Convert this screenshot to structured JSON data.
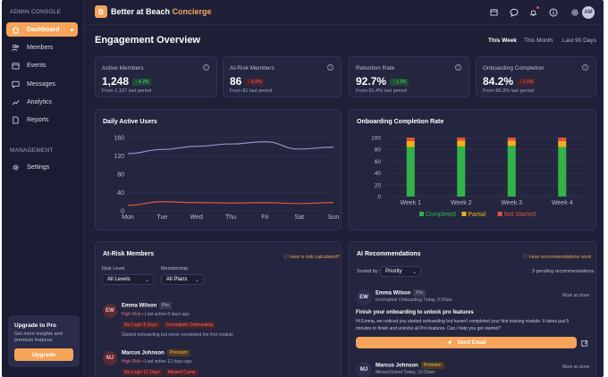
{
  "sidebar": {
    "title": "ADMIN CONSOLE",
    "items": [
      {
        "label": "Dashboard",
        "icon": "home-icon",
        "active": true
      },
      {
        "label": "Members",
        "icon": "users-icon"
      },
      {
        "label": "Events",
        "icon": "calendar-icon"
      },
      {
        "label": "Messages",
        "icon": "chat-icon"
      },
      {
        "label": "Analytics",
        "icon": "trend-icon"
      },
      {
        "label": "Reports",
        "icon": "document-icon"
      }
    ],
    "section_management": "MANAGEMENT",
    "settings_label": "Settings",
    "upgrade": {
      "title": "Upgrade to Pro",
      "text": "Get more insights and premium features",
      "button": "Upgrade"
    }
  },
  "header": {
    "logo_letter": "B",
    "brand": "Better at Beach",
    "brand_accent": "Concierge",
    "avatar_initials": "AM"
  },
  "main": {
    "title": "Engagement Overview",
    "ranges": [
      "This Week",
      "This Month",
      "Last 90 Days"
    ],
    "stats": [
      {
        "label": "Active Members",
        "value": "1,248",
        "delta": "↑ 4.2%",
        "trend": "up",
        "sub": "From 1,197 last period"
      },
      {
        "label": "At-Risk Members",
        "value": "86",
        "delta": "↑ 6.0%",
        "trend": "down",
        "sub": "From 81 last period"
      },
      {
        "label": "Retention Rate",
        "value": "92.7%",
        "delta": "↑ 1.3%",
        "trend": "up",
        "sub": "From 91.4% last period"
      },
      {
        "label": "Onboarding Completion",
        "value": "84.2%",
        "delta": "↓ 2.1%",
        "trend": "down",
        "sub": "From 86.3% last period"
      }
    ]
  },
  "chart_data": [
    {
      "type": "line",
      "title": "Daily Active Users",
      "categories": [
        "Mon",
        "Tue",
        "Wed",
        "Thu",
        "Fri",
        "Sat",
        "Sun"
      ],
      "ylim": [
        0,
        160
      ],
      "yticks": [
        "160",
        "120",
        "80",
        "40",
        "0"
      ],
      "series": [
        {
          "values": [
            125,
            134,
            141,
            146,
            151,
            135,
            139
          ],
          "color": "#8f92bf"
        },
        {
          "values": [
            12,
            20,
            18,
            17,
            18,
            16,
            18
          ],
          "color": "#e5533d"
        }
      ],
      "grid": true
    },
    {
      "type": "bar",
      "title": "Onboarding Completion Rate",
      "categories": [
        "Week 1",
        "Week 2",
        "Week 3",
        "Week 4"
      ],
      "ylim": [
        0,
        100
      ],
      "yticks": [
        "100",
        "80",
        "60",
        "40",
        "20",
        "0"
      ],
      "series": [
        {
          "name": "Completed",
          "values": [
            84,
            85,
            86,
            84
          ],
          "color": "#33b249"
        },
        {
          "name": "Partial",
          "values": [
            10,
            10,
            9,
            10
          ],
          "color": "#f2b01e"
        },
        {
          "name": "Not Started",
          "values": [
            6,
            5,
            5,
            6
          ],
          "color": "#e5533d"
        }
      ],
      "legend": "bottom",
      "grid": true
    }
  ],
  "at_risk": {
    "title": "At-Risk Members",
    "note": "How is risk calculated?",
    "filter_risk_label": "Risk Level",
    "filter_risk_value": "All Levels",
    "filter_membership_label": "Membership",
    "filter_membership_value": "All Plans",
    "members": [
      {
        "initials": "EW",
        "name": "Emma Wilson",
        "tier": "Pro",
        "risk": "High Risk",
        "last_active": "• Last active 8 days ago",
        "tags": [
          "No Login 8 Days",
          "Incomplete Onboarding"
        ],
        "note": "Started onboarding but never completed the first module"
      },
      {
        "initials": "MJ",
        "name": "Marcus Johnson",
        "tier": "Premium",
        "risk": "High Risk",
        "last_active": "• Last active 12 days ago",
        "tags": [
          "No Login 12 Days",
          "Missed Camp"
        ]
      }
    ]
  },
  "ai": {
    "title": "AI Recommendations",
    "note": "How recommendations work",
    "sorted_label": "Sorted by:",
    "sorted_value": "Priority",
    "pending": "3 pending recommendations",
    "recs": [
      {
        "initials": "EW",
        "name": "Emma Wilson",
        "tier": "Pro",
        "meta": "Incomplete Onboarding",
        "time": "Today, 9:20am",
        "action": "Mark as done",
        "headline": "Finish your onboarding to unlock pro features",
        "body_line1": "Hi Emma, we noticed you started onboarding but haven't completed your first training module. It takes just 5",
        "body_line2": "minutes to finish and unlocks all Pro features. Can I help you get started?",
        "send_label": "Send Email"
      },
      {
        "initials": "MJ",
        "name": "Marcus Johnson",
        "tier": "Premium",
        "meta": "Missed Event",
        "time": "Today, 10:15am",
        "action": "Mark as done"
      }
    ]
  }
}
